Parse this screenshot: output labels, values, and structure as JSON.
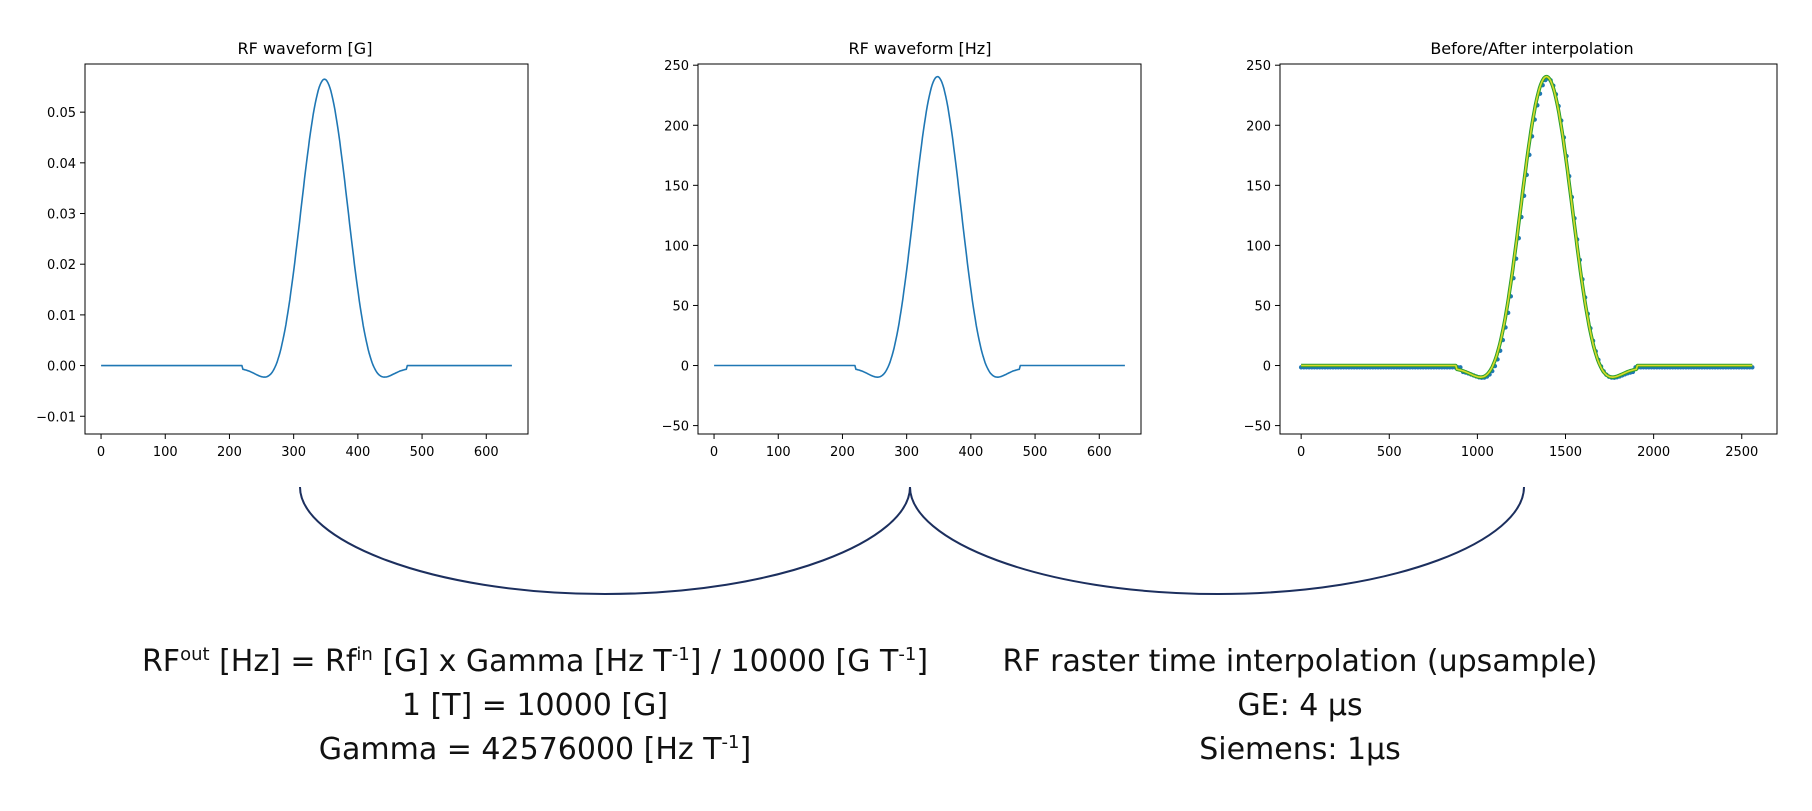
{
  "colors": {
    "series_blue": "#1f77b4",
    "series_orange": "#ff7f0e",
    "series_green": "#2ca02c",
    "interp_yellow": "#d9d92a",
    "bracket_navy": "#1c2f5e",
    "axis": "#000000"
  },
  "chart_data": [
    {
      "type": "line",
      "title": "RF waveform [G]",
      "xlabel": "",
      "ylabel": "",
      "xlim": [
        -25,
        665
      ],
      "ylim": [
        -0.0135,
        0.0595
      ],
      "xticks": [
        0,
        100,
        200,
        300,
        400,
        500,
        600
      ],
      "xtick_labels": [
        "0",
        "100",
        "200",
        "300",
        "400",
        "500",
        "600"
      ],
      "yticks": [
        -0.01,
        0.0,
        0.01,
        0.02,
        0.03,
        0.04,
        0.05
      ],
      "ytick_labels": [
        "−0.01",
        "0.00",
        "0.01",
        "0.02",
        "0.03",
        "0.04",
        "0.05"
      ],
      "grid": false,
      "series": [
        {
          "kind": "sinc_pulse",
          "x_start": 0,
          "x_end": 640,
          "pulse_start": 220,
          "pulse_end": 476,
          "center": 348,
          "lobe_width": 76,
          "peak": 0.0565
        }
      ]
    },
    {
      "type": "line",
      "title": "RF waveform [Hz]",
      "xlabel": "",
      "ylabel": "",
      "xlim": [
        -25,
        665
      ],
      "ylim": [
        -57,
        251
      ],
      "xticks": [
        0,
        100,
        200,
        300,
        400,
        500,
        600
      ],
      "xtick_labels": [
        "0",
        "100",
        "200",
        "300",
        "400",
        "500",
        "600"
      ],
      "yticks": [
        -50,
        0,
        50,
        100,
        150,
        200,
        250
      ],
      "ytick_labels": [
        "−50",
        "0",
        "50",
        "100",
        "150",
        "200",
        "250"
      ],
      "grid": false,
      "series": [
        {
          "kind": "sinc_pulse",
          "x_start": 0,
          "x_end": 640,
          "pulse_start": 220,
          "pulse_end": 476,
          "center": 348,
          "lobe_width": 76,
          "peak": 240.5
        }
      ]
    },
    {
      "type": "line",
      "title": "Before/After interpolation",
      "xlabel": "",
      "ylabel": "",
      "xlim": [
        -120,
        2700
      ],
      "ylim": [
        -57,
        251
      ],
      "xticks": [
        0,
        500,
        1000,
        1500,
        2000,
        2500
      ],
      "xtick_labels": [
        "0",
        "500",
        "1000",
        "1500",
        "2000",
        "2500"
      ],
      "yticks": [
        -50,
        0,
        50,
        100,
        150,
        200,
        250
      ],
      "ytick_labels": [
        "−50",
        "0",
        "50",
        "100",
        "150",
        "200",
        "250"
      ],
      "grid": false,
      "series": [
        {
          "kind": "sinc_pulse",
          "style": "points",
          "x_start": 0,
          "x_end": 2560,
          "pulse_start": 904,
          "pulse_end": 1896,
          "center": 1400,
          "lobe_width": 304,
          "peak": 240.5,
          "offset": -1.5
        },
        {
          "kind": "sinc_pulse",
          "style": "line-thick",
          "x_start": 0,
          "x_end": 2560,
          "pulse_start": 880,
          "pulse_end": 1904,
          "center": 1392,
          "lobe_width": 304,
          "peak": 240.5
        },
        {
          "kind": "sinc_pulse",
          "style": "line-thin",
          "x_start": 0,
          "x_end": 2560,
          "pulse_start": 880,
          "pulse_end": 1904,
          "center": 1392,
          "lobe_width": 304,
          "peak": 240.5
        }
      ]
    }
  ],
  "captions": {
    "left": {
      "line1_a": "RF",
      "line1_sup1": "out",
      "line1_b": " [Hz] = Rf",
      "line1_sup2": "in",
      "line1_c": " [G] x Gamma [Hz T",
      "line1_sup3": "-1",
      "line1_d": "] / 10000 [G T",
      "line1_sup4": "-1",
      "line1_e": "]",
      "line2": "1 [T] = 10000 [G]",
      "line3_a": "Gamma = 42576000 [Hz T",
      "line3_sup": "-1",
      "line3_b": "]"
    },
    "right": {
      "line1": "RF raster time interpolation (upsample)",
      "line2": "GE: 4 µs",
      "line3": "Siemens: 1µs"
    }
  }
}
